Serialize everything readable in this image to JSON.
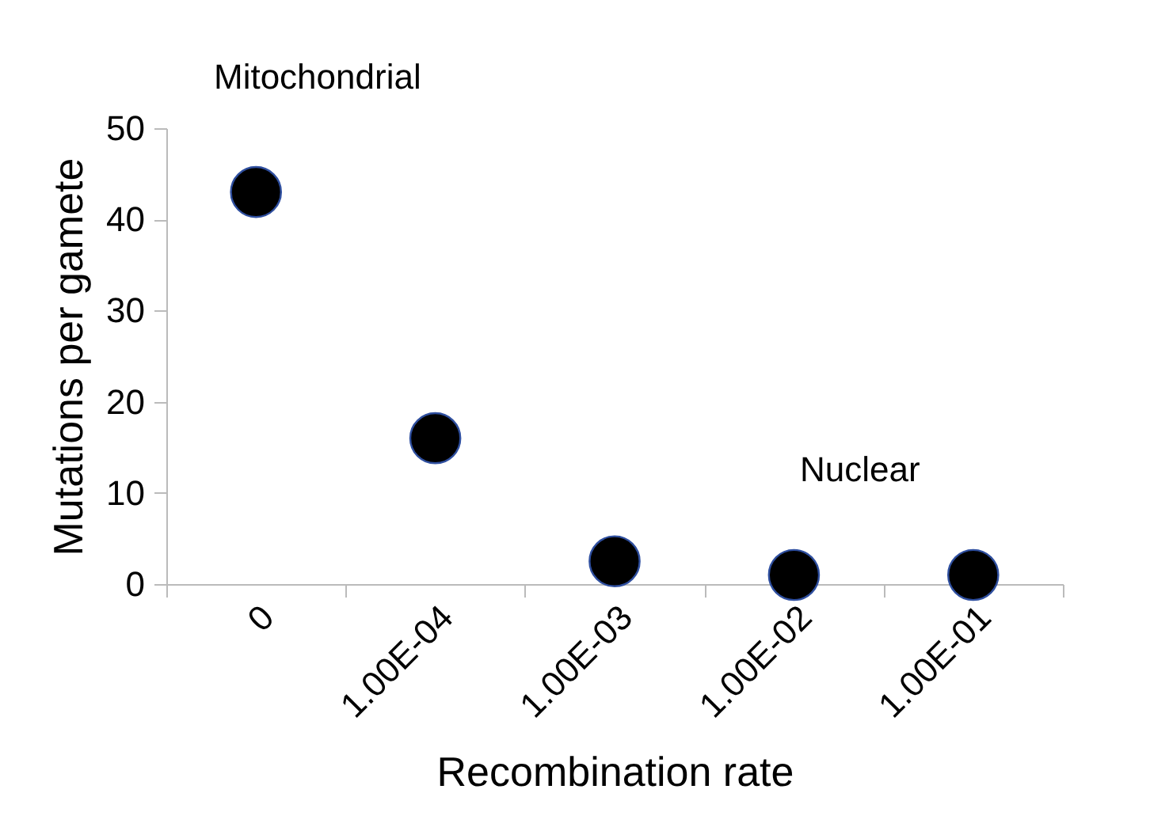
{
  "chart_data": {
    "type": "scatter",
    "xlabel": "Recombination rate",
    "ylabel": "Mutations per gamete",
    "categories": [
      "0",
      "1.00E-04",
      "1.00E-03",
      "1.00E-02",
      "1.00E-01"
    ],
    "values": [
      43,
      16,
      2.5,
      1,
      1
    ],
    "color": "#000000",
    "marker": "circle",
    "ylim": [
      0,
      50
    ],
    "yticks": [
      0,
      10,
      20,
      30,
      40,
      50
    ],
    "grid": false,
    "annotations": [
      "Mitochondrial",
      "Nuclear"
    ]
  }
}
